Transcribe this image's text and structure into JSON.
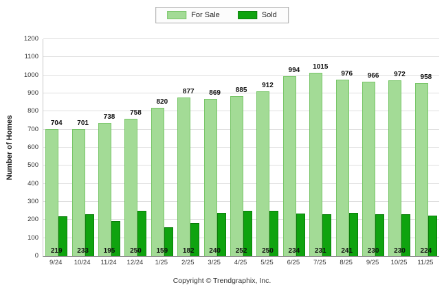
{
  "chart_data": {
    "type": "bar",
    "title": "",
    "categories": [
      "9/24",
      "10/24",
      "11/24",
      "12/24",
      "1/25",
      "2/25",
      "3/25",
      "4/25",
      "5/25",
      "6/25",
      "7/25",
      "8/25",
      "9/25",
      "10/25",
      "11/25"
    ],
    "series": [
      {
        "name": "For Sale",
        "color": "#A3DB96",
        "border_color": "#77C567",
        "values": [
          704,
          701,
          738,
          758,
          820,
          877,
          869,
          885,
          912,
          994,
          1015,
          976,
          966,
          972,
          958
        ]
      },
      {
        "name": "Sold",
        "color": "#0FA30F",
        "border_color": "#0A7D0A",
        "values": [
          219,
          233,
          195,
          250,
          159,
          182,
          240,
          252,
          250,
          234,
          231,
          241,
          230,
          230,
          224
        ]
      }
    ],
    "xlabel": "",
    "ylabel": "Number of Homes",
    "ylim": [
      0,
      1200
    ],
    "ytick_step": 100,
    "grid": true,
    "legend_position": "top-center"
  },
  "footer": {
    "copyright": "Copyright © Trendgraphix, Inc."
  }
}
